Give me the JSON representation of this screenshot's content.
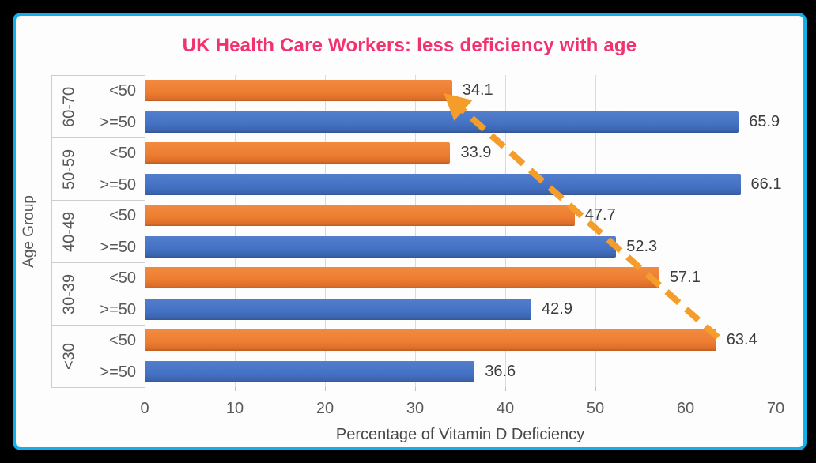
{
  "frame": {
    "background": "#000000",
    "card_border": "#12AFE8",
    "card_background": "#FDFDFD"
  },
  "title": {
    "text": "UK Health Care Workers: less deficiency with age",
    "color": "#F2326E"
  },
  "chart_data": {
    "type": "bar",
    "orientation": "horizontal",
    "title": "UK Health Care Workers: less deficiency with age",
    "xlabel": "Percentage of Vitamin D Deficiency",
    "ylabel": "Age Group",
    "xlim": [
      0,
      70
    ],
    "x_ticks": [
      "0",
      "10",
      "20",
      "30",
      "40",
      "50",
      "60",
      "70"
    ],
    "grid": "vertical-only",
    "legend": "none",
    "series_colors": {
      "lt50": "#ED7D31",
      "gte50": "#4472C4"
    },
    "groups": [
      {
        "category": "60-70",
        "bars": [
          {
            "label": "<50",
            "value": 34.1,
            "series": "lt50"
          },
          {
            "label": ">=50",
            "value": 65.9,
            "series": "gte50"
          }
        ]
      },
      {
        "category": "50-59",
        "bars": [
          {
            "label": "<50",
            "value": 33.9,
            "series": "lt50"
          },
          {
            "label": ">=50",
            "value": 66.1,
            "series": "gte50"
          }
        ]
      },
      {
        "category": "40-49",
        "bars": [
          {
            "label": "<50",
            "value": 47.7,
            "series": "lt50"
          },
          {
            "label": ">=50",
            "value": 52.3,
            "series": "gte50"
          }
        ]
      },
      {
        "category": "30-39",
        "bars": [
          {
            "label": "<50",
            "value": 57.1,
            "series": "lt50"
          },
          {
            "label": ">=50",
            "value": 42.9,
            "series": "gte50"
          }
        ]
      },
      {
        "category": "<30",
        "bars": [
          {
            "label": "<50",
            "value": 63.4,
            "series": "lt50"
          },
          {
            "label": ">=50",
            "value": 36.6,
            "series": "gte50"
          }
        ]
      }
    ],
    "annotation": {
      "type": "trend-arrow",
      "style": "dashed",
      "color": "#F59D2B",
      "from_value": 63.4,
      "to_value": 34.1
    }
  }
}
